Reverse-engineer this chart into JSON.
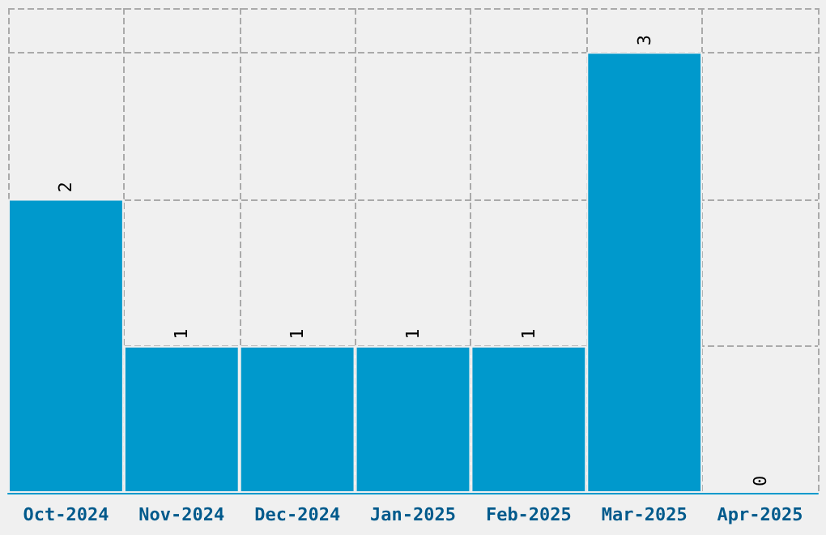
{
  "chart_data": {
    "type": "bar",
    "categories": [
      "Oct-2024",
      "Nov-2024",
      "Dec-2024",
      "Jan-2025",
      "Feb-2025",
      "Mar-2025",
      "Apr-2025"
    ],
    "values": [
      2,
      1,
      1,
      1,
      1,
      3,
      0
    ],
    "color": "#0099cc",
    "data_labels": true,
    "grid": true,
    "tick_labels": "x"
  }
}
